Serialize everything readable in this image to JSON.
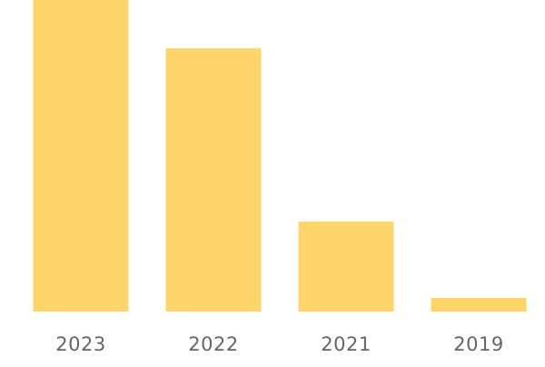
{
  "chart_data": {
    "type": "bar",
    "categories": [
      "2023",
      "2022",
      "2021",
      "2019"
    ],
    "values": [
      100,
      84.5,
      28.9,
      4.4
    ],
    "color": "#fdd56a"
  }
}
